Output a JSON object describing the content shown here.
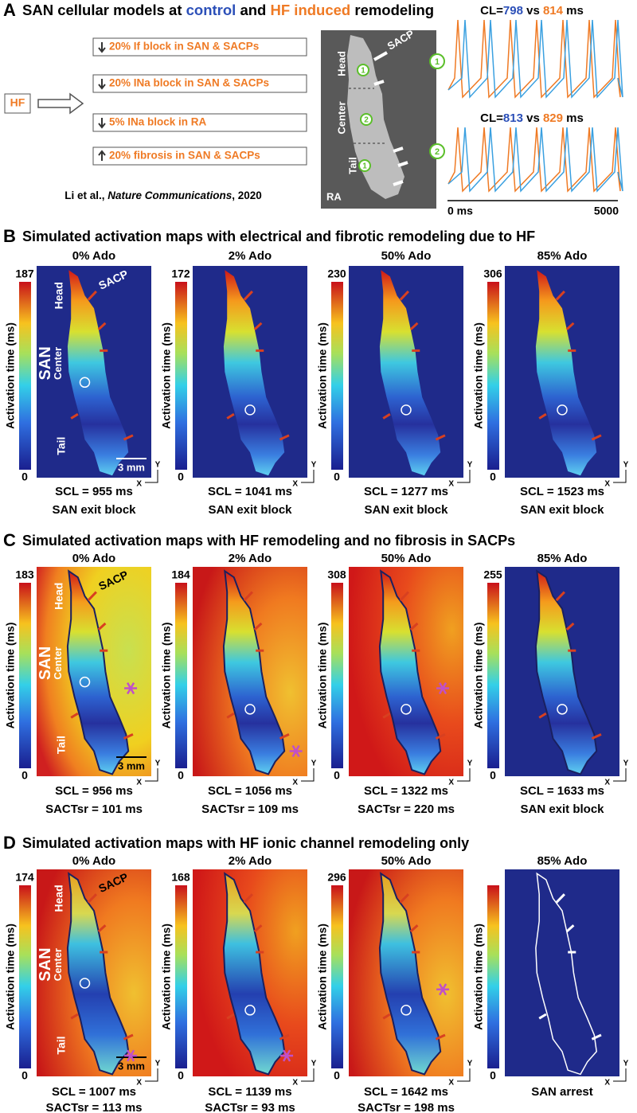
{
  "panel_a": {
    "letter": "A",
    "title": {
      "lead": "SAN cellular models at ",
      "control": "control",
      "mid": " and ",
      "hf": "HF induced",
      "tail": " remodeling"
    },
    "hf_box": "HF",
    "items": [
      "20% If block in SAN & SACPs",
      "20% INa block in SAN & SACPs",
      "5% INa block in RA",
      "20% fibrosis in SAN & SACPs"
    ],
    "citation": {
      "authors": "Li et al., ",
      "journal": "Nature Communications",
      "year": ", 2020"
    },
    "map": {
      "head": "Head",
      "sacp": "SACP",
      "center": "Center",
      "tail": "Tail",
      "ra": "RA",
      "markers": [
        "1",
        "2",
        "1"
      ]
    },
    "traces": [
      {
        "marker": "1",
        "cl": "CL=",
        "control": "798",
        "vs": " vs ",
        "hf": "814",
        "unit": " ms"
      },
      {
        "marker": "2",
        "cl": "CL=",
        "control": "813",
        "vs": " vs ",
        "hf": "829",
        "unit": " ms"
      }
    ],
    "time_axis": {
      "start": "0 ms",
      "end": "5000"
    }
  },
  "common": {
    "colorbar_label": "Activation time (ms)",
    "colorbar_min": "0",
    "x_axis": "X",
    "y_axis": "Y",
    "anatomy": {
      "head": "Head",
      "sacp": "SACP",
      "san": "SAN",
      "center": "Center",
      "tail": "Tail",
      "scale": "3 mm"
    }
  },
  "panels": [
    {
      "letter": "B",
      "title": "Simulated activation maps with electrical and fibrotic remodeling due to HF",
      "maps": [
        {
          "header": "0% Ado",
          "colorbar_max": "187",
          "lines": [
            "SCL = 955 ms",
            "SAN exit block"
          ]
        },
        {
          "header": "2% Ado",
          "colorbar_max": "172",
          "lines": [
            "SCL = 1041 ms",
            "SAN exit block"
          ]
        },
        {
          "header": "50% Ado",
          "colorbar_max": "230",
          "lines": [
            "SCL = 1277 ms",
            "SAN exit block"
          ]
        },
        {
          "header": "85% Ado",
          "colorbar_max": "306",
          "lines": [
            "SCL = 1523 ms",
            "SAN exit block"
          ]
        }
      ]
    },
    {
      "letter": "C",
      "title": "Simulated activation maps with HF remodeling and no fibrosis in SACPs",
      "maps": [
        {
          "header": "0% Ado",
          "colorbar_max": "183",
          "lines": [
            "SCL = 956 ms",
            "SACTsr = 101 ms"
          ]
        },
        {
          "header": "2% Ado",
          "colorbar_max": "184",
          "lines": [
            "SCL = 1056 ms",
            "SACTsr = 109 ms"
          ]
        },
        {
          "header": "50% Ado",
          "colorbar_max": "308",
          "lines": [
            "SCL = 1322 ms",
            "SACTsr = 220 ms"
          ]
        },
        {
          "header": "85% Ado",
          "colorbar_max": "255",
          "lines": [
            "SCL = 1633 ms",
            "SAN exit block"
          ]
        }
      ]
    },
    {
      "letter": "D",
      "title": "Simulated activation maps with HF ionic channel remodeling only",
      "maps": [
        {
          "header": "0% Ado",
          "colorbar_max": "174",
          "lines": [
            "SCL = 1007 ms",
            "SACTsr = 113 ms"
          ]
        },
        {
          "header": "2% Ado",
          "colorbar_max": "168",
          "lines": [
            "SCL = 1139 ms",
            "SACTsr = 93 ms"
          ]
        },
        {
          "header": "50% Ado",
          "colorbar_max": "296",
          "lines": [
            "SCL = 1642 ms",
            "SACTsr = 198 ms"
          ]
        },
        {
          "header": "85% Ado",
          "lines": [
            "SAN arrest"
          ]
        }
      ]
    }
  ]
}
